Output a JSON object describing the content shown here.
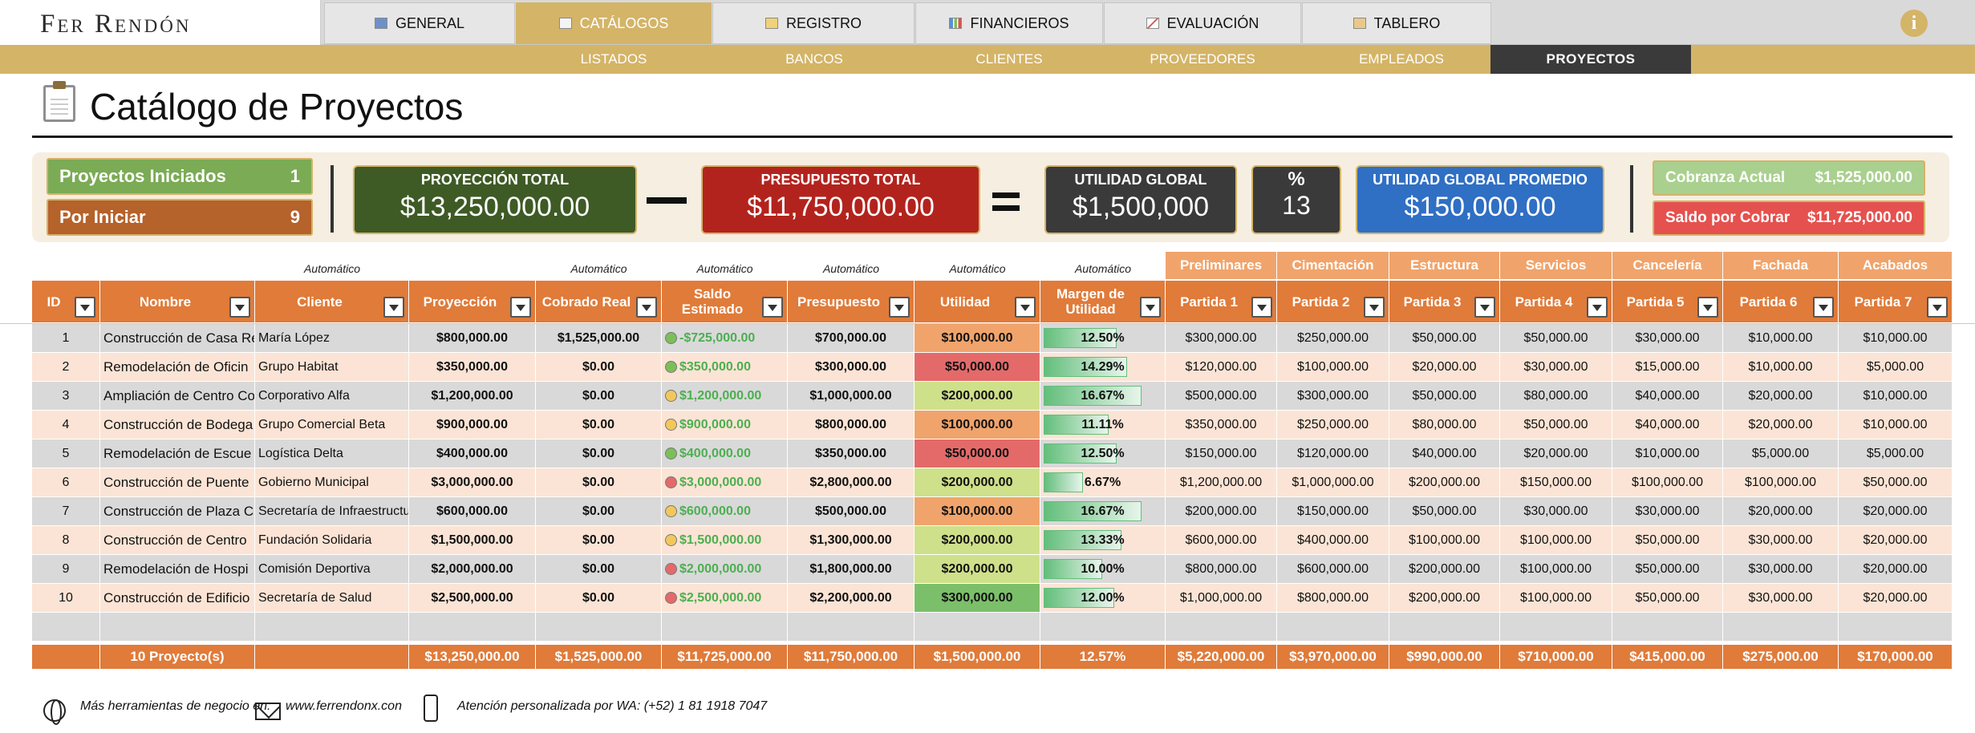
{
  "brand": "Fer Rendón",
  "nav": {
    "tabs": [
      {
        "label": "GENERAL",
        "icon": "info-icon"
      },
      {
        "label": "CATÁLOGOS",
        "icon": "catalog-icon"
      },
      {
        "label": "REGISTRO",
        "icon": "register-icon"
      },
      {
        "label": "FINANCIEROS",
        "icon": "bar-chart-icon"
      },
      {
        "label": "EVALUACIÓN",
        "icon": "line-chart-icon"
      },
      {
        "label": "TABLERO",
        "icon": "dashboard-icon"
      }
    ],
    "active_tab": "CATÁLOGOS",
    "subtabs": [
      "LISTADOS",
      "BANCOS",
      "CLIENTES",
      "PROVEEDORES",
      "EMPLEADOS",
      "PROYECTOS"
    ],
    "active_subtab": "PROYECTOS",
    "info_glyph": "i"
  },
  "page": {
    "title": "Catálogo de Proyectos"
  },
  "summary": {
    "iniciados_label": "Proyectos Iniciados",
    "iniciados_value": "1",
    "por_iniciar_label": "Por Iniciar",
    "por_iniciar_value": "9",
    "proyeccion_label": "PROYECCIÓN TOTAL",
    "proyeccion_value": "$13,250,000.00",
    "presupuesto_label": "PRESUPUESTO TOTAL",
    "presupuesto_value": "$11,750,000.00",
    "utilidad_label": "UTILIDAD GLOBAL",
    "utilidad_value": "$1,500,000",
    "pct_label": "%",
    "pct_value": "13",
    "promedio_label": "UTILIDAD GLOBAL PROMEDIO",
    "promedio_value": "$150,000.00",
    "cobranza_label": "Cobranza Actual",
    "cobranza_value": "$1,525,000.00",
    "saldo_label": "Saldo por Cobrar",
    "saldo_value": "$11,725,000.00"
  },
  "table": {
    "auto_label": "Automático",
    "headers": [
      "ID",
      "Nombre",
      "Cliente",
      "Proyección",
      "Cobrado Real",
      "Saldo Estimado",
      "Presupuesto",
      "Utilidad",
      "Margen de Utilidad",
      "Partida 1",
      "Partida 2",
      "Partida 3",
      "Partida 4",
      "Partida 5",
      "Partida 6",
      "Partida 7"
    ],
    "groups": [
      "Preliminares",
      "Cimentación",
      "Estructura",
      "Servicios",
      "Cancelería",
      "Fachada",
      "Acabados"
    ],
    "rows": [
      {
        "id": "1",
        "nombre": "Construcción de Casa Re",
        "cliente": "María López",
        "proyeccion": "$800,000.00",
        "cobrado": "$1,525,000.00",
        "saldo": "-$725,000.00",
        "dot": "#7cbf5a",
        "presupuesto": "$700,000.00",
        "utilidad": "$100,000.00",
        "util_color": "#f0a46c",
        "margen": "12.50%",
        "margen_pct": 12.5,
        "p": [
          "$300,000.00",
          "$250,000.00",
          "$50,000.00",
          "$50,000.00",
          "$30,000.00",
          "$10,000.00",
          "$10,000.00"
        ]
      },
      {
        "id": "2",
        "nombre": "Remodelación de Oficin",
        "cliente": "Grupo Habitat",
        "proyeccion": "$350,000.00",
        "cobrado": "$0.00",
        "saldo": "$350,000.00",
        "dot": "#7cbf5a",
        "presupuesto": "$300,000.00",
        "utilidad": "$50,000.00",
        "util_color": "#e46a6a",
        "margen": "14.29%",
        "margen_pct": 14.29,
        "p": [
          "$120,000.00",
          "$100,000.00",
          "$20,000.00",
          "$30,000.00",
          "$15,000.00",
          "$10,000.00",
          "$5,000.00"
        ]
      },
      {
        "id": "3",
        "nombre": "Ampliación de Centro Co",
        "cliente": "Corporativo Alfa",
        "proyeccion": "$1,200,000.00",
        "cobrado": "$0.00",
        "saldo": "$1,200,000.00",
        "dot": "#f2c85b",
        "presupuesto": "$1,000,000.00",
        "utilidad": "$200,000.00",
        "util_color": "#cfe08a",
        "margen": "16.67%",
        "margen_pct": 16.67,
        "p": [
          "$500,000.00",
          "$300,000.00",
          "$50,000.00",
          "$80,000.00",
          "$40,000.00",
          "$20,000.00",
          "$10,000.00"
        ]
      },
      {
        "id": "4",
        "nombre": "Construcción de Bodega",
        "cliente": "Grupo Comercial Beta",
        "proyeccion": "$900,000.00",
        "cobrado": "$0.00",
        "saldo": "$900,000.00",
        "dot": "#f2c85b",
        "presupuesto": "$800,000.00",
        "utilidad": "$100,000.00",
        "util_color": "#f0a46c",
        "margen": "11.11%",
        "margen_pct": 11.11,
        "p": [
          "$350,000.00",
          "$250,000.00",
          "$80,000.00",
          "$50,000.00",
          "$40,000.00",
          "$20,000.00",
          "$10,000.00"
        ]
      },
      {
        "id": "5",
        "nombre": "Remodelación de Escue",
        "cliente": "Logística Delta",
        "proyeccion": "$400,000.00",
        "cobrado": "$0.00",
        "saldo": "$400,000.00",
        "dot": "#7cbf5a",
        "presupuesto": "$350,000.00",
        "utilidad": "$50,000.00",
        "util_color": "#e46a6a",
        "margen": "12.50%",
        "margen_pct": 12.5,
        "p": [
          "$150,000.00",
          "$120,000.00",
          "$40,000.00",
          "$20,000.00",
          "$10,000.00",
          "$5,000.00",
          "$5,000.00"
        ]
      },
      {
        "id": "6",
        "nombre": "Construcción de Puente",
        "cliente": "Gobierno Municipal",
        "proyeccion": "$3,000,000.00",
        "cobrado": "$0.00",
        "saldo": "$3,000,000.00",
        "dot": "#e46a6a",
        "presupuesto": "$2,800,000.00",
        "utilidad": "$200,000.00",
        "util_color": "#cfe08a",
        "margen": "6.67%",
        "margen_pct": 6.67,
        "p": [
          "$1,200,000.00",
          "$1,000,000.00",
          "$200,000.00",
          "$150,000.00",
          "$100,000.00",
          "$100,000.00",
          "$50,000.00"
        ]
      },
      {
        "id": "7",
        "nombre": "Construcción de Plaza C",
        "cliente": "Secretaría de Infraestructu",
        "proyeccion": "$600,000.00",
        "cobrado": "$0.00",
        "saldo": "$600,000.00",
        "dot": "#f2c85b",
        "presupuesto": "$500,000.00",
        "utilidad": "$100,000.00",
        "util_color": "#f0a46c",
        "margen": "16.67%",
        "margen_pct": 16.67,
        "p": [
          "$200,000.00",
          "$150,000.00",
          "$50,000.00",
          "$30,000.00",
          "$30,000.00",
          "$20,000.00",
          "$20,000.00"
        ]
      },
      {
        "id": "8",
        "nombre": "Construcción de Centro",
        "cliente": "Fundación Solidaria",
        "proyeccion": "$1,500,000.00",
        "cobrado": "$0.00",
        "saldo": "$1,500,000.00",
        "dot": "#f2c85b",
        "presupuesto": "$1,300,000.00",
        "utilidad": "$200,000.00",
        "util_color": "#cfe08a",
        "margen": "13.33%",
        "margen_pct": 13.33,
        "p": [
          "$600,000.00",
          "$400,000.00",
          "$100,000.00",
          "$100,000.00",
          "$50,000.00",
          "$30,000.00",
          "$20,000.00"
        ]
      },
      {
        "id": "9",
        "nombre": "Remodelación de Hospi",
        "cliente": "Comisión Deportiva",
        "proyeccion": "$2,000,000.00",
        "cobrado": "$0.00",
        "saldo": "$2,000,000.00",
        "dot": "#e46a6a",
        "presupuesto": "$1,800,000.00",
        "utilidad": "$200,000.00",
        "util_color": "#cfe08a",
        "margen": "10.00%",
        "margen_pct": 10.0,
        "p": [
          "$800,000.00",
          "$600,000.00",
          "$200,000.00",
          "$100,000.00",
          "$50,000.00",
          "$30,000.00",
          "$20,000.00"
        ]
      },
      {
        "id": "10",
        "nombre": "Construcción de Edificio",
        "cliente": "Secretaría de Salud",
        "proyeccion": "$2,500,000.00",
        "cobrado": "$0.00",
        "saldo": "$2,500,000.00",
        "dot": "#e46a6a",
        "presupuesto": "$2,200,000.00",
        "utilidad": "$300,000.00",
        "util_color": "#7cbf6a",
        "margen": "12.00%",
        "margen_pct": 12.0,
        "p": [
          "$1,000,000.00",
          "$800,000.00",
          "$200,000.00",
          "$100,000.00",
          "$50,000.00",
          "$30,000.00",
          "$20,000.00"
        ]
      }
    ],
    "totals": [
      "",
      "10 Proyecto(s)",
      "",
      "$13,250,000.00",
      "$1,525,000.00",
      "$11,725,000.00",
      "$11,750,000.00",
      "$1,500,000.00",
      "12.57%",
      "$5,220,000.00",
      "$3,970,000.00",
      "$990,000.00",
      "$710,000.00",
      "$415,000.00",
      "$275,000.00",
      "$170,000.00"
    ]
  },
  "footer": {
    "herramientas": "Más herramientas de negocio en:",
    "web": "www.ferrendonx.con",
    "wa": "Atención personalizada por WA: (+52) 1 81 1918 7047"
  },
  "colors": {
    "gold": "#d4b467",
    "orange": "#e07b3a",
    "dark": "#3a3a3a",
    "green_dark": "#3e5a25",
    "red_dark": "#b3231d",
    "blue": "#2f6fc4"
  }
}
